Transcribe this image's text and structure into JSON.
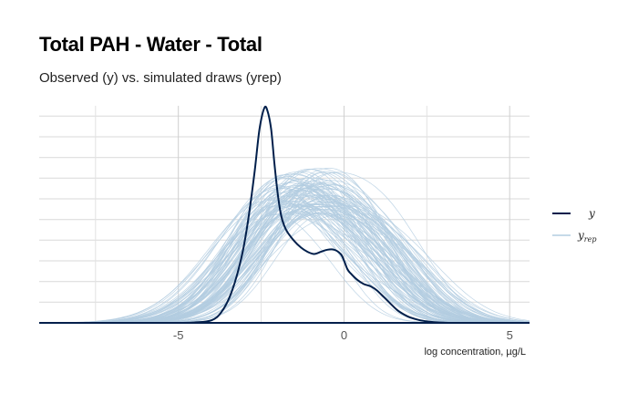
{
  "title": "Total PAH - Water - Total",
  "subtitle": "Observed (y) vs. simulated draws (yrep)",
  "chart_data": {
    "type": "line",
    "xlabel": "log concentration, µg/L",
    "ylabel": "",
    "xlim": [
      -9.2,
      5.6
    ],
    "x_ticks": [
      -5,
      0,
      5
    ],
    "x_tick_labels": [
      "-5",
      "0",
      "5"
    ],
    "y_axis_shown": false,
    "grid": true,
    "legend_position": "right",
    "legend": [
      {
        "label": "y",
        "color": "#011f4b"
      },
      {
        "label": "y",
        "subscript": "rep",
        "color": "#b3cde0"
      }
    ],
    "series": [
      {
        "name": "y",
        "color": "#011f4b",
        "x": [
          -9.2,
          -7,
          -5,
          -4.5,
          -4,
          -3.7,
          -3.4,
          -3.1,
          -2.9,
          -2.7,
          -2.55,
          -2.4,
          -2.3,
          -2.2,
          -2.1,
          -2.0,
          -1.9,
          -1.8,
          -1.7,
          -1.5,
          -1.3,
          -1.1,
          -0.9,
          -0.7,
          -0.5,
          -0.3,
          -0.1,
          0.0,
          0.1,
          0.2,
          0.4,
          0.6,
          0.8,
          1.0,
          1.2,
          1.4,
          1.6,
          1.8,
          2.0,
          2.3,
          2.6,
          3.0,
          3.5,
          5.6
        ],
        "y": [
          0,
          0,
          0.0,
          0.002,
          0.012,
          0.05,
          0.14,
          0.3,
          0.47,
          0.7,
          0.9,
          1.0,
          0.98,
          0.9,
          0.74,
          0.6,
          0.5,
          0.45,
          0.42,
          0.38,
          0.35,
          0.33,
          0.32,
          0.33,
          0.34,
          0.34,
          0.32,
          0.29,
          0.25,
          0.23,
          0.2,
          0.18,
          0.17,
          0.15,
          0.12,
          0.09,
          0.06,
          0.04,
          0.025,
          0.012,
          0.005,
          0.001,
          0,
          0
        ]
      }
    ],
    "yrep": {
      "name": "yrep",
      "color": "#b3cde0",
      "draws": 100,
      "mean_peak_location": -1.6,
      "peak_height_range": [
        0.5,
        0.72
      ]
    }
  }
}
